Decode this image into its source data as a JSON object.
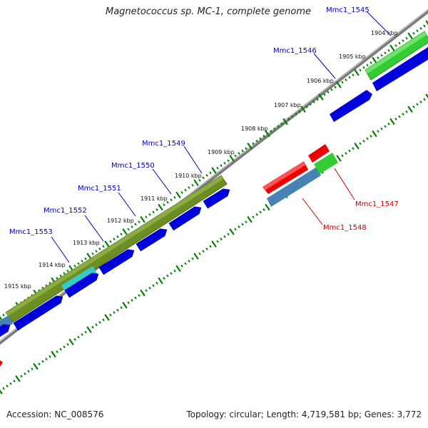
{
  "title": "Magnetococcus sp. MC-1, complete genome",
  "footer": {
    "accession": "Accession: NC_008576",
    "summary": "Topology: circular; Length: 4,719,581 bp; Genes: 3,772"
  },
  "scale_labels": [
    "1904 kbp",
    "1905 kbp",
    "1906 kbp",
    "1907 kbp",
    "1908 kbp",
    "1909 kbp",
    "1910 kbp",
    "1911 kbp",
    "1912 kbp",
    "1913 kbp",
    "1914 kbp",
    "1915 kbp"
  ],
  "gene_labels_forward": [
    "Mmc1_1545",
    "Mmc1_1546",
    "Mmc1_1549",
    "Mmc1_1550",
    "Mmc1_1551",
    "Mmc1_1552",
    "Mmc1_1553"
  ],
  "gene_labels_reverse": [
    "Mmc1_1547",
    "Mmc1_1548"
  ],
  "colors": {
    "forward_label": "#0000bb",
    "reverse_label": "#cc0000",
    "cds_blue": "#0000dd",
    "gene_green": "#33cc33",
    "olive": "#6b8e23",
    "steel": "#4682b4",
    "cyan": "#33cccc",
    "red": "#ee0000",
    "tick_green": "#008000",
    "backbone": "#888888"
  }
}
